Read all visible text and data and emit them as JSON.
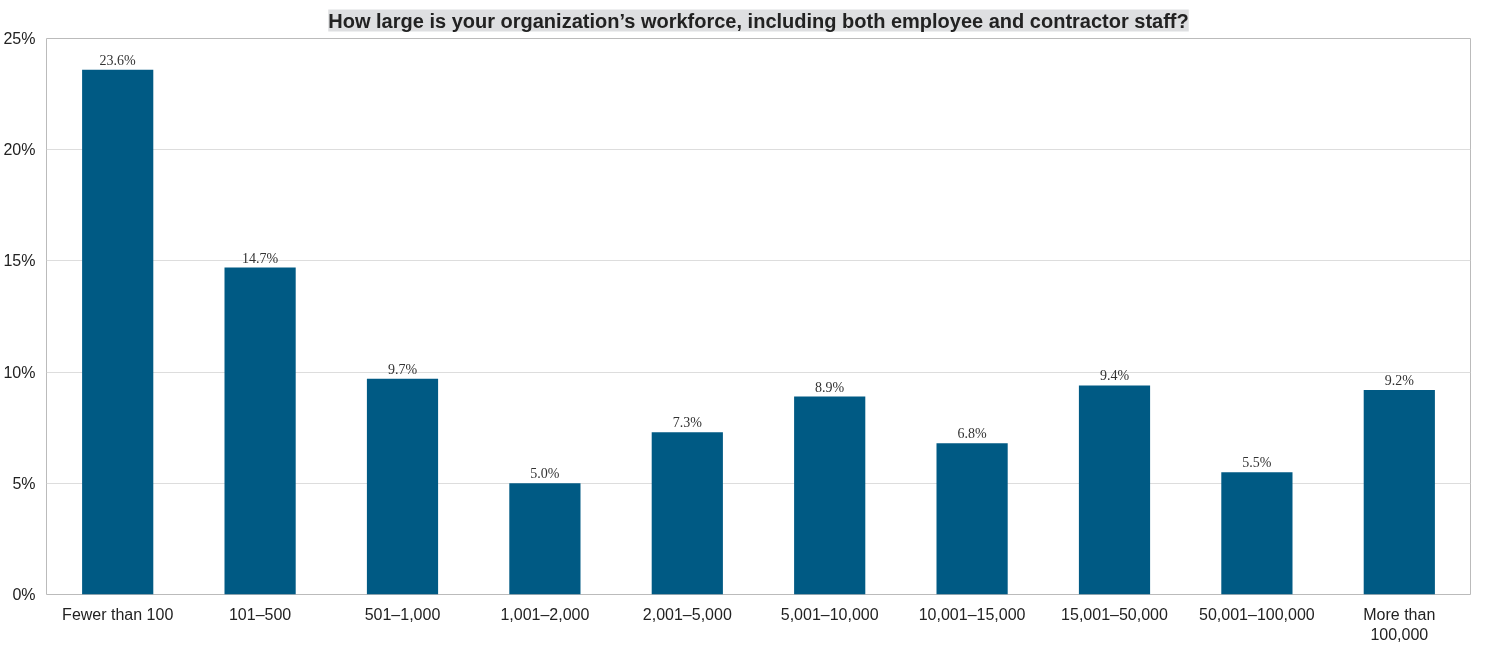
{
  "chart_data": {
    "type": "bar",
    "title": "How large is your organization’s workforce, including both employee and contractor staff?",
    "categories": [
      "Fewer than 100",
      "101–500",
      "501–1,000",
      "1,001–2,000",
      "2,001–5,000",
      "5,001–10,000",
      "10,001–15,000",
      "15,001–50,000",
      "50,001–100,000",
      "More than 100,000"
    ],
    "values": [
      23.6,
      14.7,
      9.7,
      5.0,
      7.3,
      8.9,
      6.8,
      9.4,
      5.5,
      9.2
    ],
    "value_labels": [
      "23.6%",
      "14.7%",
      "9.7%",
      "5.0%",
      "7.3%",
      "8.9%",
      "6.8%",
      "9.4%",
      "5.5%",
      "9.2%"
    ],
    "color": "#005a84",
    "ylim": [
      0,
      25
    ],
    "yticks": [
      {
        "value": 0,
        "label": "0%"
      },
      {
        "value": 5,
        "label": "5%"
      },
      {
        "value": 10,
        "label": "10%"
      },
      {
        "value": 15,
        "label": "15%"
      },
      {
        "value": 20,
        "label": "20%"
      },
      {
        "value": 25,
        "label": "25%"
      }
    ],
    "grid": "y"
  }
}
